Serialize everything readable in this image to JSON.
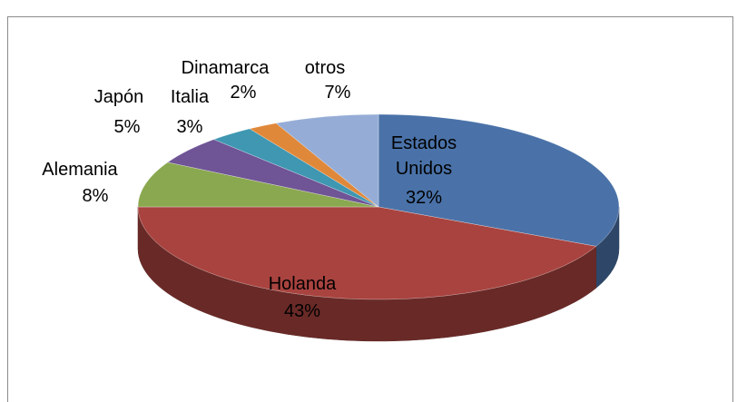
{
  "chart_data": {
    "type": "pie3d",
    "categories": [
      "Estados Unidos",
      "Holanda",
      "Alemania",
      "Japón",
      "Italia",
      "Dinamarca",
      "otros"
    ],
    "values": [
      32,
      43,
      8,
      5,
      3,
      2,
      7
    ],
    "value_labels": [
      "32%",
      "43%",
      "8%",
      "5%",
      "3%",
      "2%",
      "7%"
    ],
    "colors": [
      "#4a72a8",
      "#a9433f",
      "#8aa84f",
      "#6f5496",
      "#3f97b1",
      "#e0883a",
      "#95add6"
    ]
  }
}
